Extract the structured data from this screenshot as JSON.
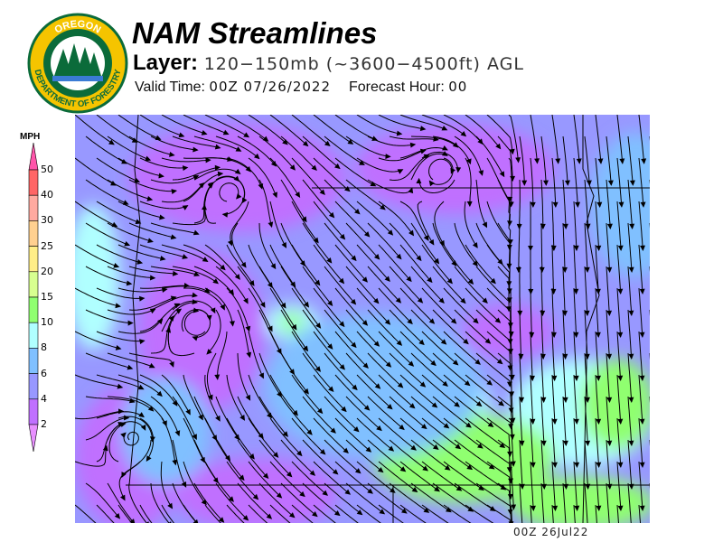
{
  "logo": {
    "top_text": "OREGON",
    "bottom_text": "DEPARTMENT OF FORESTRY",
    "colors": {
      "ring": "#f5c400",
      "inner": "#0b6b3a"
    }
  },
  "header": {
    "title": "NAM Streamlines",
    "layer_label": "Layer:",
    "layer_value": "120−150mb (~3600−4500ft) AGL",
    "valid_label": "Valid Time:",
    "valid_value": "00Z 07/26/2022",
    "forecast_label": "Forecast Hour:",
    "forecast_value": "00"
  },
  "legend": {
    "unit": "MPH",
    "ticks": [
      "50",
      "40",
      "30",
      "25",
      "20",
      "15",
      "10",
      "8",
      "6",
      "4",
      "2"
    ],
    "colors": {
      "above": "#ff55aa",
      "40-50": "#ff6666",
      "30-40": "#ffaaa0",
      "25-30": "#ffd090",
      "20-25": "#ffee88",
      "15-20": "#d8ff90",
      "10-15": "#90ff70",
      "8-10": "#b0ffff",
      "6-8": "#80c0ff",
      "4-6": "#9898ff",
      "2-4": "#c070ff",
      "below": "#e890ff"
    }
  },
  "map": {
    "timestamp": "00Z 26Jul22",
    "streamline_color": "#000000",
    "border_color": "#000000"
  }
}
